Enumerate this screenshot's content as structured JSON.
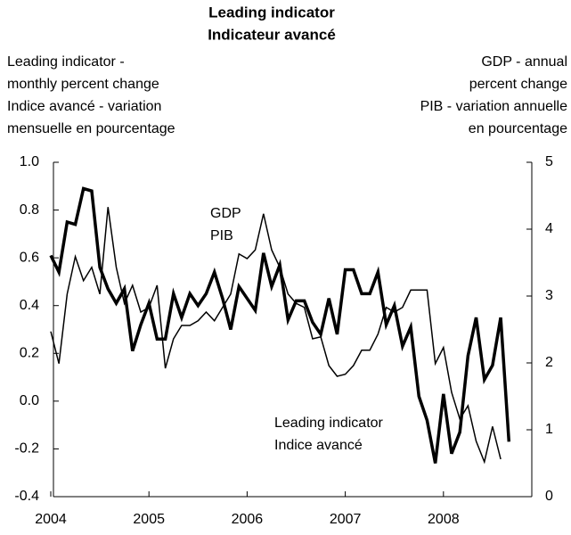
{
  "chart_data": {
    "type": "line",
    "title": [
      "Leading indicator",
      "Indicateur avancé"
    ],
    "ylabel": [
      "Leading indicator -",
      "monthly percent change",
      "Indice avancé - variation",
      "mensuelle en pourcentage"
    ],
    "y2label": [
      "GDP - annual",
      "percent change",
      "PIB - variation annuelle",
      "en pourcentage"
    ],
    "annotations": [
      {
        "lines": [
          "GDP",
          "PIB"
        ]
      },
      {
        "lines": [
          "Leading indicator",
          "Indice avancé"
        ]
      }
    ],
    "x": [
      2004,
      2004.083,
      2004.167,
      2004.25,
      2004.333,
      2004.417,
      2004.5,
      2004.583,
      2004.667,
      2004.75,
      2004.833,
      2004.917,
      2005,
      2005.083,
      2005.167,
      2005.25,
      2005.333,
      2005.417,
      2005.5,
      2005.583,
      2005.667,
      2005.75,
      2005.833,
      2005.917,
      2006,
      2006.083,
      2006.167,
      2006.25,
      2006.333,
      2006.417,
      2006.5,
      2006.583,
      2006.667,
      2006.75,
      2006.833,
      2006.917,
      2007,
      2007.083,
      2007.167,
      2007.25,
      2007.333,
      2007.417,
      2007.5,
      2007.583,
      2007.667,
      2007.75,
      2007.833,
      2007.917,
      2008,
      2008.083,
      2008.167,
      2008.25,
      2008.333,
      2008.417,
      2008.5,
      2008.583,
      2008.667
    ],
    "series": [
      {
        "name": "Leading indicator",
        "color": "#000000",
        "width": 3.5,
        "values": [
          0.61,
          0.54,
          0.75,
          0.74,
          0.89,
          0.88,
          0.56,
          0.47,
          0.41,
          0.47,
          0.21,
          0.32,
          0.41,
          0.26,
          0.26,
          0.45,
          0.35,
          0.45,
          0.4,
          0.45,
          0.54,
          0.43,
          0.3,
          0.48,
          0.43,
          0.38,
          0.62,
          0.48,
          0.57,
          0.34,
          0.42,
          0.42,
          0.33,
          0.28,
          0.43,
          0.28,
          0.55,
          0.55,
          0.45,
          0.45,
          0.54,
          0.32,
          0.4,
          0.23,
          0.31,
          0.02,
          -0.08,
          -0.26,
          0.03,
          -0.22,
          -0.13,
          0.19,
          0.35,
          0.09,
          0.15,
          0.35,
          -0.17
        ]
      },
      {
        "name": "GDP",
        "color": "#000000",
        "width": 1.5,
        "axis": "y2",
        "values": [
          2.47,
          1.99,
          3.03,
          3.59,
          3.23,
          3.43,
          3.03,
          4.33,
          3.43,
          2.89,
          3.16,
          2.76,
          2.83,
          3.16,
          1.92,
          2.36,
          2.56,
          2.56,
          2.63,
          2.76,
          2.63,
          2.83,
          3.03,
          3.63,
          3.56,
          3.69,
          4.23,
          3.69,
          3.43,
          3.03,
          2.89,
          2.83,
          2.36,
          2.39,
          1.96,
          1.8,
          1.83,
          1.96,
          2.19,
          2.19,
          2.43,
          2.83,
          2.76,
          2.83,
          3.09,
          3.09,
          3.09,
          1.99,
          2.23,
          1.56,
          1.16,
          1.36,
          0.83,
          0.52,
          1.05,
          0.56,
          null
        ]
      }
    ],
    "xlim": [
      2004,
      2008.9
    ],
    "xticks": [
      2004,
      2005,
      2006,
      2007,
      2008
    ],
    "ylim": [
      -0.4,
      1.0
    ],
    "yticks": [
      {
        "value": 1.0,
        "label": "1.0"
      },
      0.8,
      0.6,
      0.4,
      0.2,
      {
        "value": 0,
        "label": "0.0"
      },
      -0.2,
      -0.4
    ],
    "y2lim": [
      0,
      5
    ],
    "y2ticks": [
      0,
      1,
      2,
      3,
      4,
      5
    ],
    "grid": false
  }
}
